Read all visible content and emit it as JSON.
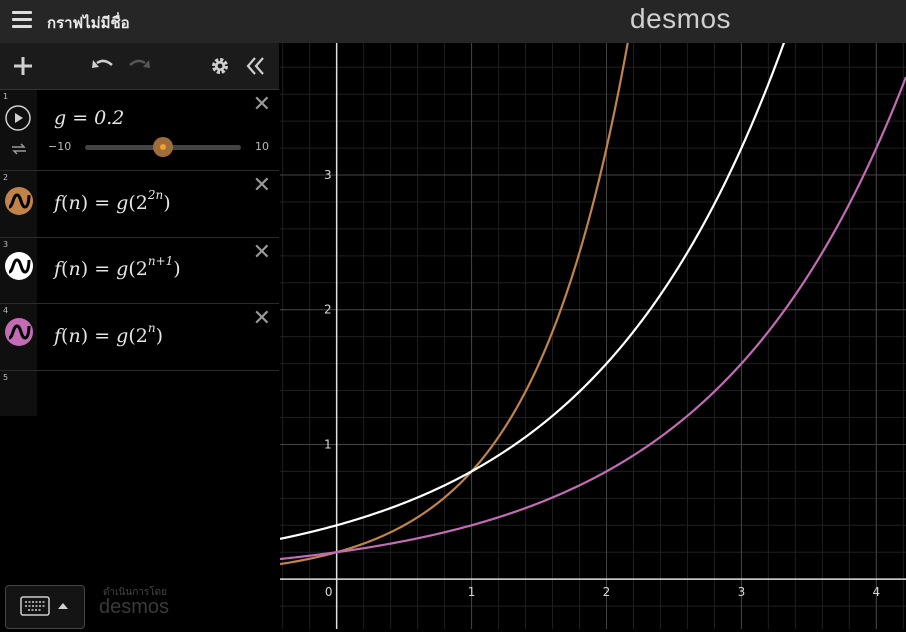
{
  "app": {
    "graph_title": "กราฟไม่มีชื่อ",
    "brand": "desmos",
    "powered_by": "ดำเนินการโดย",
    "powered_brand": "desmos"
  },
  "toolbar": {
    "add_icon": "plus-icon",
    "undo_icon": "undo-icon",
    "redo_icon": "redo-icon",
    "settings_icon": "gear-icon",
    "collapse_icon": "double-chevron-left-icon"
  },
  "expressions": [
    {
      "index": "1",
      "text": "g = 0.2",
      "slider_min": "−10",
      "slider_max": "10",
      "slider_value": 0.2
    },
    {
      "index": "2",
      "lhs": "f",
      "var": "n",
      "eq": "=",
      "fn": "g",
      "base": "2",
      "exp": "2n",
      "color": "#c0834a"
    },
    {
      "index": "3",
      "lhs": "f",
      "var": "n",
      "eq": "=",
      "fn": "g",
      "base": "2",
      "exp": "n+1",
      "color": "#ffffff"
    },
    {
      "index": "4",
      "lhs": "f",
      "var": "n",
      "eq": "=",
      "fn": "g",
      "base": "2",
      "exp": "n",
      "color": "#c36bb5"
    },
    {
      "index": "5"
    }
  ],
  "chart_data": {
    "type": "line",
    "xlim": [
      -0.42,
      4.22
    ],
    "ylim": [
      -0.37,
      3.98
    ],
    "x_ticks": [
      "0",
      "1",
      "2",
      "3",
      "4"
    ],
    "y_ticks": [
      "1",
      "2",
      "3"
    ],
    "grid": true,
    "series": [
      {
        "g": 0.2,
        "k": 2,
        "c": 0,
        "color": "#c0834a"
      },
      {
        "g": 0.2,
        "k": 1,
        "c": 1,
        "color": "#ffffff"
      },
      {
        "g": 0.2,
        "k": 1,
        "c": 0,
        "color": "#c36bb5"
      }
    ]
  }
}
